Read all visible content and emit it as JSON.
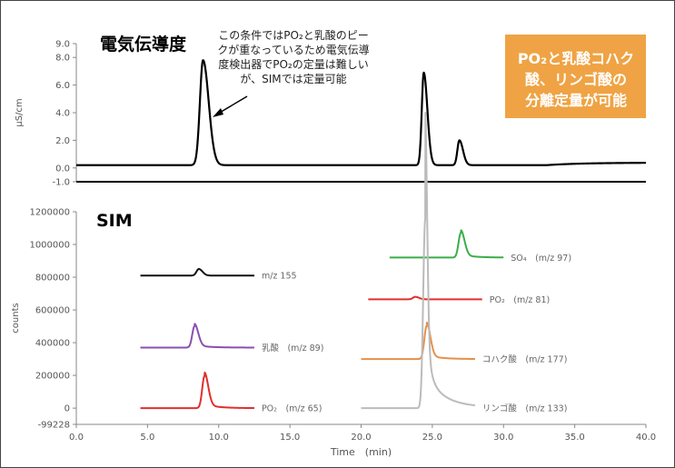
{
  "chart_data": [
    {
      "type": "line",
      "title": "電気伝導度",
      "ylabel": "μS/cm",
      "xlim": [
        0,
        40
      ],
      "ylim": [
        -1.0,
        9.0
      ],
      "yticks": [
        "-1.0",
        "0.0",
        "2.0",
        "4.0",
        "6.0",
        "8.0",
        "9.0"
      ],
      "annotation": [
        "この条件ではPO₂と乳酸のピー",
        "クが重なっているため電気伝導",
        "度検出器でPO₂の定量は難しい",
        "が、SIMでは定量可能"
      ],
      "callout": [
        "PO₂と乳酸コハク",
        "酸、リンゴ酸の",
        "分離定量が可能"
      ],
      "callout_color": "#EFA344",
      "baseline": 0.2,
      "peaks": [
        {
          "x": 8.9,
          "height": 7.6,
          "width": 0.22
        },
        {
          "x": 24.4,
          "height": 6.7,
          "width": 0.14
        },
        {
          "x": 26.9,
          "height": 1.8,
          "width": 0.14
        }
      ]
    },
    {
      "type": "line",
      "title": "SIM",
      "ylabel": "counts",
      "xlabel": "Time　(min)",
      "xlim": [
        0,
        40
      ],
      "ylim": [
        -99228,
        1200000
      ],
      "yticks": [
        "-99228",
        "0",
        "200000",
        "400000",
        "600000",
        "800000",
        "1000000",
        "1200000"
      ],
      "xticks": [
        "0.0",
        "5.0",
        "10.0",
        "15.0",
        "20.0",
        "25.0",
        "30.0",
        "35.0",
        "40.0"
      ],
      "series": [
        {
          "label": "m/z 155",
          "color": "#111111",
          "x_range": [
            4.5,
            12.5
          ],
          "baseline": 810000,
          "peak_x": 8.6,
          "peak_height": 40000
        },
        {
          "label": "乳酸　(m/z 89)",
          "color": "#8A4FB0",
          "x_range": [
            4.5,
            12.5
          ],
          "baseline": 370000,
          "peak_x": 8.3,
          "peak_height": 130000
        },
        {
          "label": "PO₂　(m/z 65)",
          "color": "#E0302B",
          "x_range": [
            4.5,
            12.5
          ],
          "baseline": 0,
          "peak_x": 9.0,
          "peak_height": 195000
        },
        {
          "label": "SO₄　(m/z 97)",
          "color": "#3AAE4A",
          "x_range": [
            22.0,
            30.0
          ],
          "baseline": 920000,
          "peak_x": 27.0,
          "peak_height": 150000
        },
        {
          "label": "PO₂　(m/z 81)",
          "color": "#E0302B",
          "x_range": [
            20.5,
            28.5
          ],
          "baseline": 665000,
          "peak_x": 23.8,
          "peak_height": 15000
        },
        {
          "label": "コハク酸　(m/z 177)",
          "color": "#E6904A",
          "x_range": [
            20.0,
            28.0
          ],
          "baseline": 300000,
          "peak_x": 24.6,
          "peak_height": 200000
        },
        {
          "label": "リンゴ酸　(m/z 133)",
          "color": "#BBBBBB",
          "x_range": [
            20.0,
            28.0
          ],
          "baseline": 0,
          "peak_x": 24.5,
          "peak_height": 1150000
        }
      ]
    }
  ]
}
